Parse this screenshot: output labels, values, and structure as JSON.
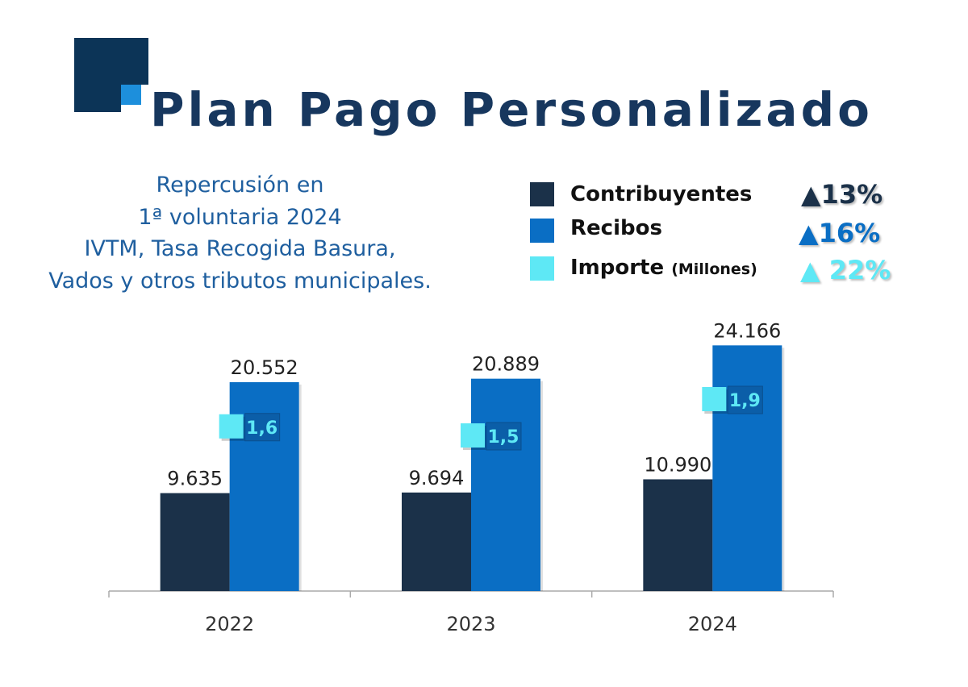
{
  "title": "Plan Pago Personalizado",
  "subtitle_lines": [
    "Repercusión en",
    "1ª voluntaria 2024",
    "IVTM, Tasa Recogida Basura,",
    "Vados y otros tributos municipales."
  ],
  "colors": {
    "contribuyentes": "#1b3149",
    "recibos": "#0a6ec4",
    "importe": "#5ee8f5",
    "title": "#17375e",
    "subtitle": "#1f5f9f",
    "logo_dark": "#0c3457",
    "logo_light": "#1d8fdc"
  },
  "legend": [
    {
      "label": "Contribuyentes",
      "suffix": "",
      "change": "▲13%",
      "color": "#1b3149"
    },
    {
      "label": "Recibos",
      "suffix": "",
      "change": "▲16%",
      "color": "#0a6ec4"
    },
    {
      "label": "Importe",
      "suffix": "(Millones)",
      "change": "▲ 22%",
      "color": "#5ee8f5"
    }
  ],
  "chart_data": {
    "type": "bar",
    "title": "Plan Pago Personalizado",
    "categories": [
      "2022",
      "2023",
      "2024"
    ],
    "series": [
      {
        "name": "Contribuyentes",
        "values": [
          9635,
          9694,
          10990
        ],
        "labels": [
          "9.635",
          "9.694",
          "10.990"
        ],
        "color": "#1b3149"
      },
      {
        "name": "Recibos",
        "values": [
          20552,
          20889,
          24166
        ],
        "labels": [
          "20.552",
          "20.889",
          "24.166"
        ],
        "color": "#0a6ec4"
      },
      {
        "name": "Importe (Millones)",
        "type": "marker",
        "axis": "secondary",
        "values": [
          1.6,
          1.5,
          1.9
        ],
        "labels": [
          "1,6",
          "1,5",
          "1,9"
        ],
        "color": "#5ee8f5"
      }
    ],
    "ylim": [
      0,
      28000
    ],
    "grid": false,
    "legend_placement": "top-right"
  }
}
